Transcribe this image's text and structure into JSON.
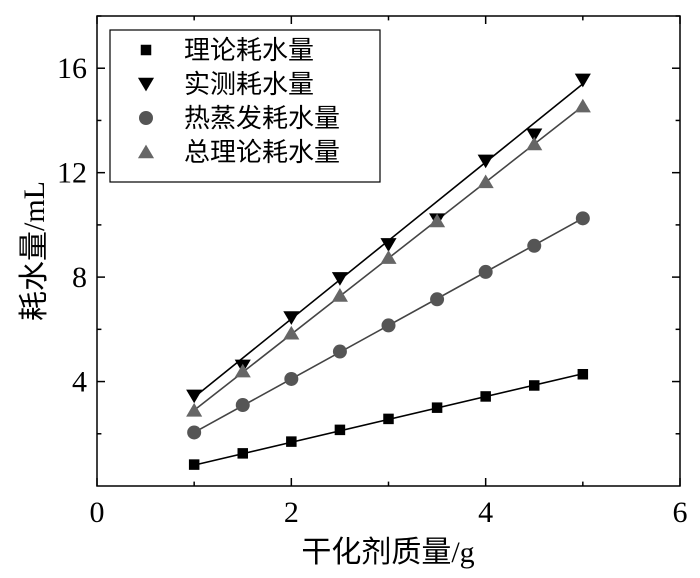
{
  "chart_data": {
    "type": "scatter",
    "xlabel": "干化剂质量/g",
    "ylabel": "耗水量/mL",
    "xlim": [
      0,
      6
    ],
    "ylim": [
      0,
      18
    ],
    "xticks": [
      0,
      2,
      4,
      6
    ],
    "yticks": [
      4,
      8,
      12,
      16
    ],
    "grid": false,
    "legend_position": "top-left",
    "x": [
      1.0,
      1.5,
      2.0,
      2.5,
      3.0,
      3.5,
      4.0,
      4.5,
      5.0
    ],
    "series": [
      {
        "name": "理论耗水量",
        "marker": "square",
        "color": "#000000",
        "values": [
          0.82,
          1.25,
          1.7,
          2.15,
          2.57,
          3.0,
          3.43,
          3.85,
          4.28
        ],
        "fit": [
          0.8,
          4.3
        ]
      },
      {
        "name": "实测耗水量",
        "marker": "triangle-down",
        "color": "#000000",
        "values": [
          3.45,
          4.6,
          6.45,
          7.95,
          9.25,
          10.2,
          12.45,
          13.45,
          15.55
        ],
        "fit": [
          3.4,
          15.4
        ]
      },
      {
        "name": "热蒸发耗水量",
        "marker": "circle",
        "color": "#555555",
        "values": [
          2.05,
          3.1,
          4.1,
          5.15,
          6.15,
          7.15,
          8.2,
          9.2,
          10.25
        ],
        "fit": [
          2.05,
          10.25
        ]
      },
      {
        "name": "总理论耗水量",
        "marker": "triangle-up",
        "color": "#666666",
        "values": [
          2.9,
          4.4,
          5.85,
          7.3,
          8.75,
          10.15,
          11.65,
          13.1,
          14.55
        ],
        "fit": [
          2.9,
          14.55
        ]
      }
    ]
  }
}
